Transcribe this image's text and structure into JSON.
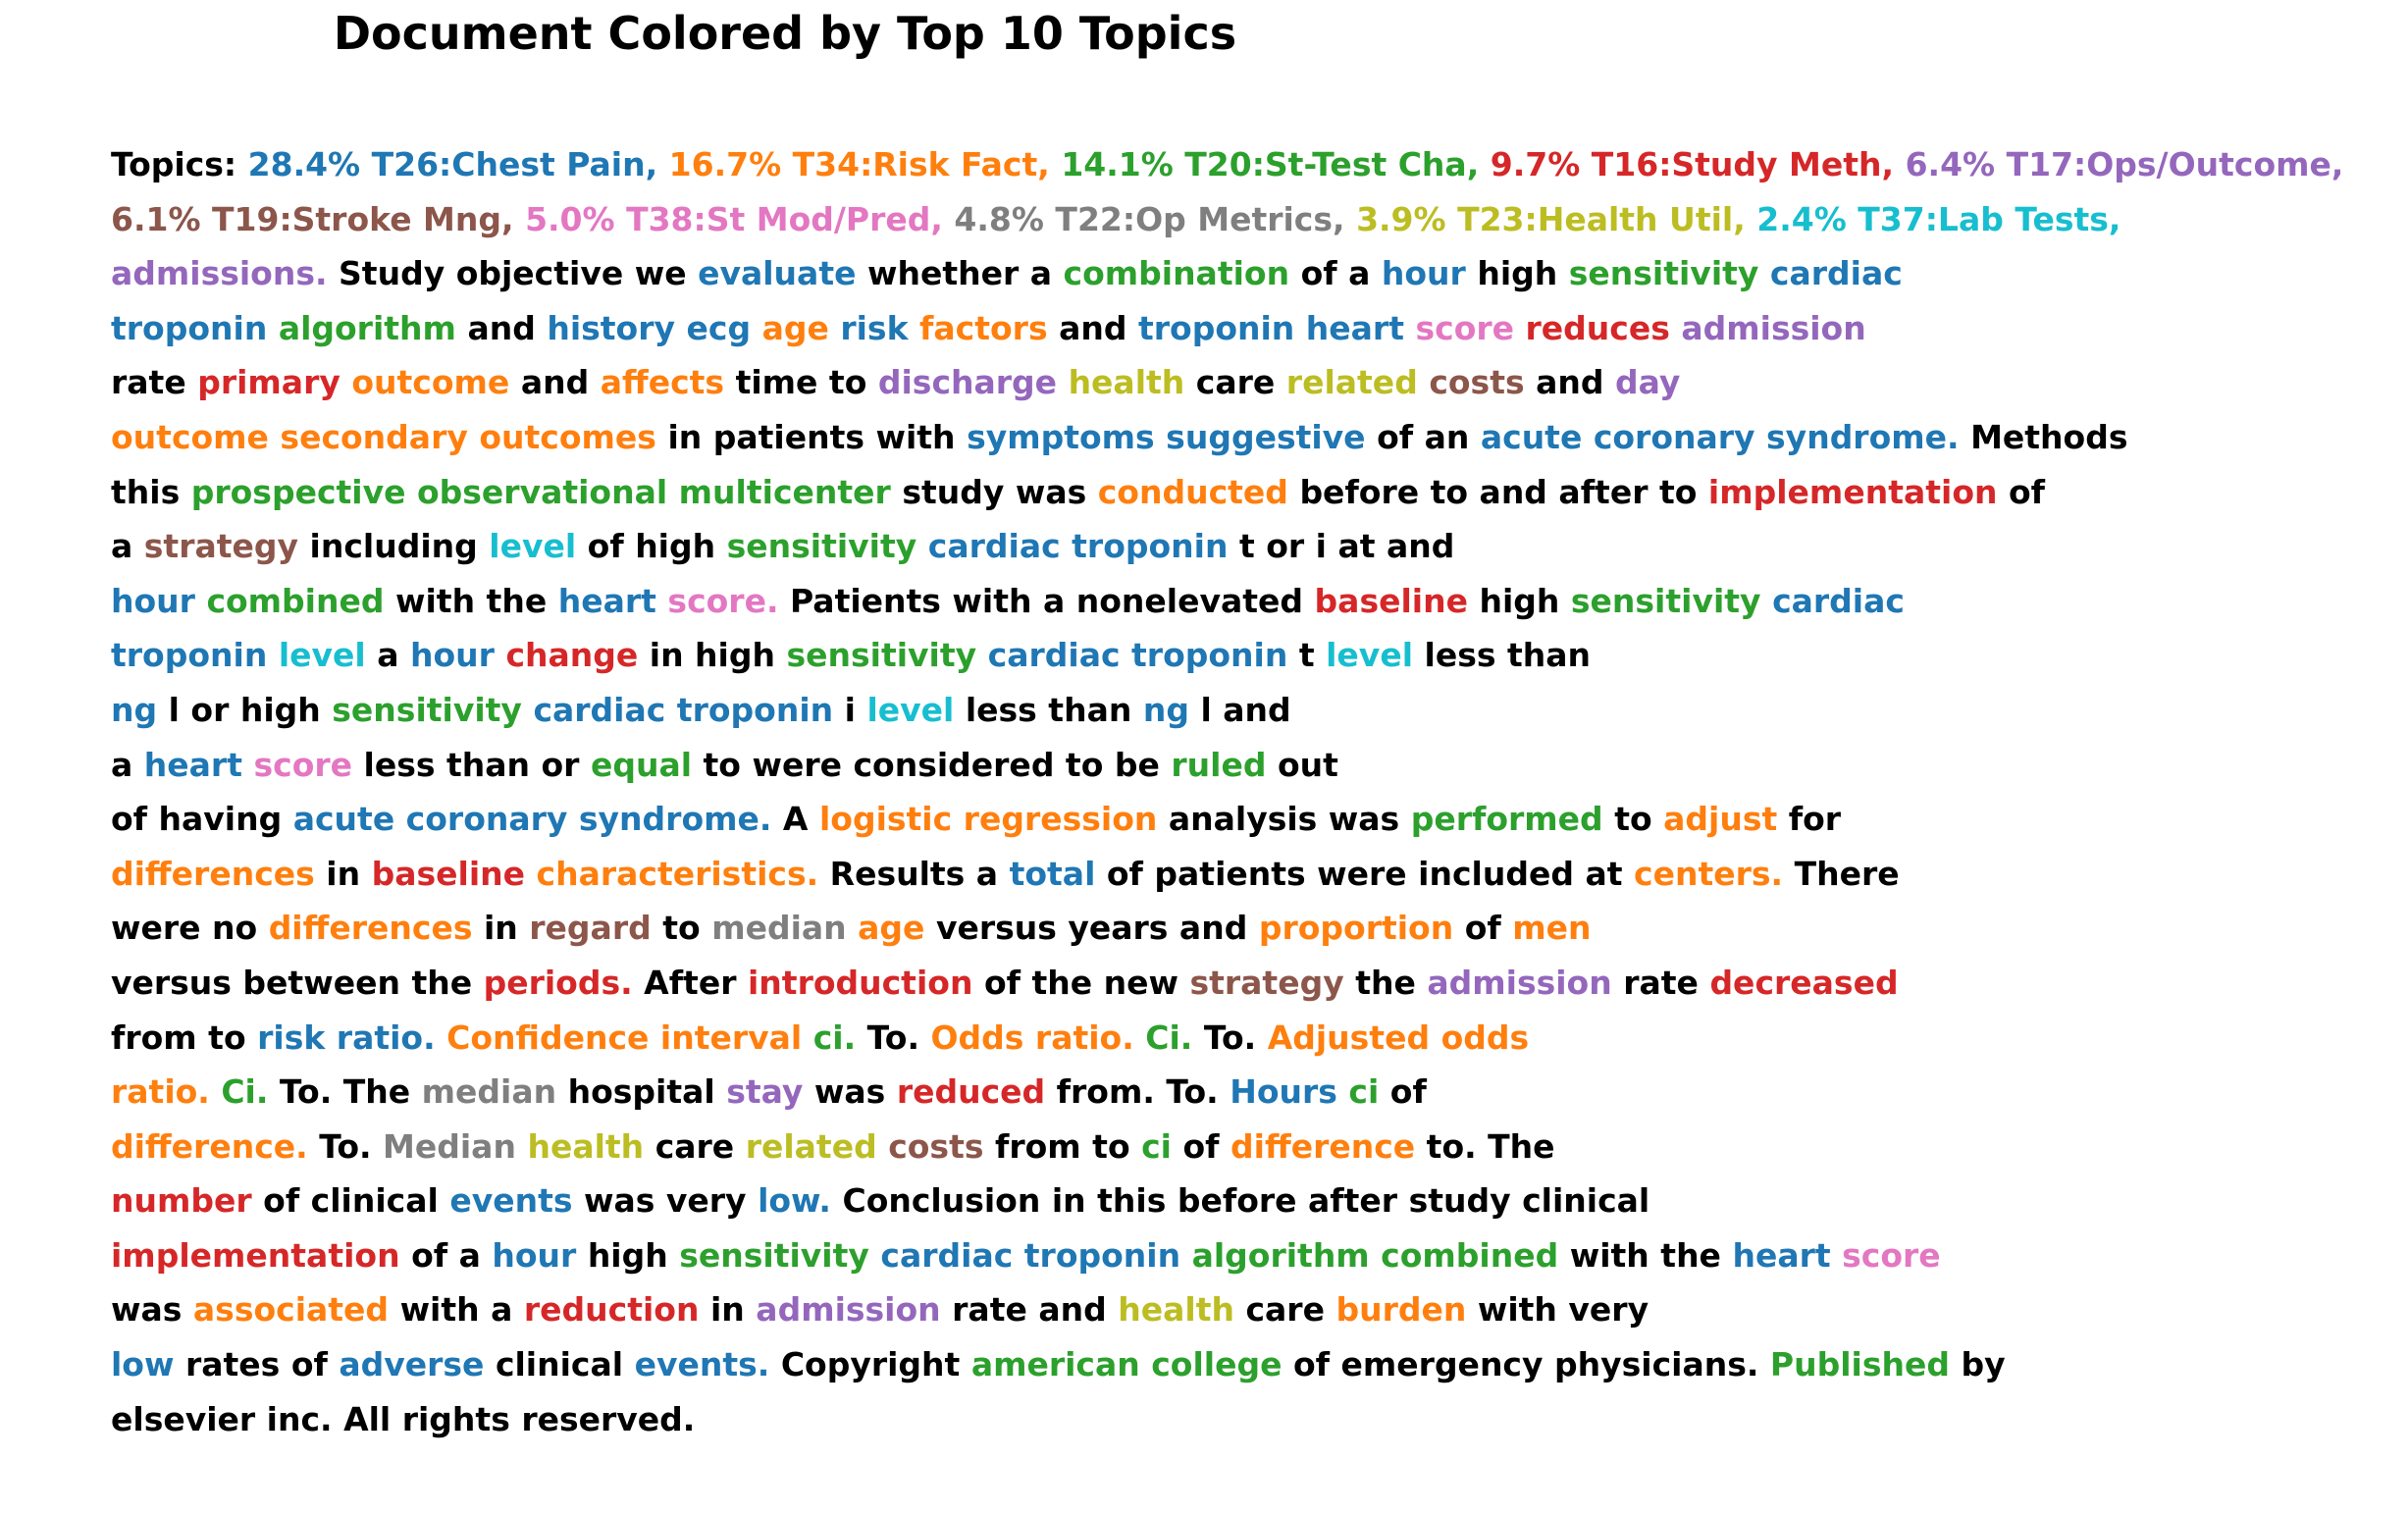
{
  "title": "Document Colored by Top 10 Topics",
  "palette": {
    "plain": "#000000",
    "T26": "#1f77b4",
    "T34": "#ff7f0e",
    "T20": "#2ca02c",
    "T16": "#d62728",
    "T17": "#9467bd",
    "T19": "#8c564b",
    "T38": "#e377c2",
    "T22": "#7f7f7f",
    "T23": "#bcbd22",
    "T37": "#17becf"
  },
  "legend": [
    {
      "topic": "T26",
      "text": "28.4% T26:Chest Pain,"
    },
    {
      "topic": "T34",
      "text": "16.7% T34:Risk Fact,"
    },
    {
      "topic": "T20",
      "text": "14.1% T20:St-Test Cha,"
    },
    {
      "topic": "T16",
      "text": "9.7% T16:Study Meth,"
    },
    {
      "topic": "T17",
      "text": "6.4% T17:Ops/Outcome,"
    },
    {
      "topic": "T19",
      "text": "6.1% T19:Stroke Mng,"
    },
    {
      "topic": "T38",
      "text": "5.0% T38:St Mod/Pred,"
    },
    {
      "topic": "T22",
      "text": "4.8% T22:Op Metrics,"
    },
    {
      "topic": "T23",
      "text": "3.9% T23:Health Util,"
    },
    {
      "topic": "T37",
      "text": "2.4% T37:Lab Tests,"
    }
  ],
  "lines": [
    [
      [
        "Topics:",
        "plain"
      ],
      [
        "28.4% T26:Chest Pain,",
        "T26"
      ],
      [
        "16.7% T34:Risk Fact,",
        "T34"
      ],
      [
        "14.1% T20:St-Test Cha,",
        "T20"
      ],
      [
        "9.7% T16:Study Meth,",
        "T16"
      ],
      [
        "6.4% T17:Ops/Outcome,",
        "T17"
      ]
    ],
    [
      [
        "6.1% T19:Stroke Mng,",
        "T19"
      ],
      [
        "5.0% T38:St Mod/Pred,",
        "T38"
      ],
      [
        "4.8% T22:Op Metrics,",
        "T22"
      ],
      [
        "3.9% T23:Health Util,",
        "T23"
      ],
      [
        "2.4% T37:Lab Tests,",
        "T37"
      ]
    ],
    [
      [
        "admissions.",
        "T17"
      ],
      [
        "Study objective we",
        "plain"
      ],
      [
        "evaluate",
        "T26"
      ],
      [
        "whether a",
        "plain"
      ],
      [
        "combination",
        "T20"
      ],
      [
        "of a",
        "plain"
      ],
      [
        "hour",
        "T26"
      ],
      [
        "high",
        "plain"
      ],
      [
        "sensitivity",
        "T20"
      ],
      [
        "cardiac",
        "T26"
      ]
    ],
    [
      [
        "troponin",
        "T26"
      ],
      [
        "algorithm",
        "T20"
      ],
      [
        "and",
        "plain"
      ],
      [
        "history ecg",
        "T26"
      ],
      [
        "age",
        "T34"
      ],
      [
        "risk",
        "T26"
      ],
      [
        "factors",
        "T34"
      ],
      [
        "and",
        "plain"
      ],
      [
        "troponin heart",
        "T26"
      ],
      [
        "score",
        "T38"
      ],
      [
        "reduces",
        "T16"
      ],
      [
        "admission",
        "T17"
      ]
    ],
    [
      [
        "rate",
        "plain"
      ],
      [
        "primary",
        "T16"
      ],
      [
        "outcome",
        "T34"
      ],
      [
        "and",
        "plain"
      ],
      [
        "affects",
        "T34"
      ],
      [
        "time to",
        "plain"
      ],
      [
        "discharge",
        "T17"
      ],
      [
        "health",
        "T23"
      ],
      [
        "care",
        "plain"
      ],
      [
        "related",
        "T23"
      ],
      [
        "costs",
        "T19"
      ],
      [
        "and",
        "plain"
      ],
      [
        "day",
        "T17"
      ]
    ],
    [
      [
        "outcome secondary outcomes",
        "T34"
      ],
      [
        "in patients with",
        "plain"
      ],
      [
        "symptoms suggestive",
        "T26"
      ],
      [
        "of an",
        "plain"
      ],
      [
        "acute coronary syndrome.",
        "T26"
      ],
      [
        "Methods",
        "plain"
      ]
    ],
    [
      [
        "this",
        "plain"
      ],
      [
        "prospective observational multicenter",
        "T20"
      ],
      [
        "study was",
        "plain"
      ],
      [
        "conducted",
        "T34"
      ],
      [
        "before to and after to",
        "plain"
      ],
      [
        "implementation",
        "T16"
      ],
      [
        "of",
        "plain"
      ]
    ],
    [
      [
        "a",
        "plain"
      ],
      [
        "strategy",
        "T19"
      ],
      [
        "including",
        "plain"
      ],
      [
        "level",
        "T37"
      ],
      [
        "of high",
        "plain"
      ],
      [
        "sensitivity",
        "T20"
      ],
      [
        "cardiac troponin",
        "T26"
      ],
      [
        "t or i at and",
        "plain"
      ]
    ],
    [
      [
        "hour",
        "T26"
      ],
      [
        "combined",
        "T20"
      ],
      [
        "with the",
        "plain"
      ],
      [
        "heart",
        "T26"
      ],
      [
        "score.",
        "T38"
      ],
      [
        "Patients with a nonelevated",
        "plain"
      ],
      [
        "baseline",
        "T16"
      ],
      [
        "high",
        "plain"
      ],
      [
        "sensitivity",
        "T20"
      ],
      [
        "cardiac",
        "T26"
      ]
    ],
    [
      [
        "troponin",
        "T26"
      ],
      [
        "level",
        "T37"
      ],
      [
        "a",
        "plain"
      ],
      [
        "hour",
        "T26"
      ],
      [
        "change",
        "T16"
      ],
      [
        "in high",
        "plain"
      ],
      [
        "sensitivity",
        "T20"
      ],
      [
        "cardiac troponin",
        "T26"
      ],
      [
        "t",
        "plain"
      ],
      [
        "level",
        "T37"
      ],
      [
        "less than",
        "plain"
      ]
    ],
    [
      [
        "ng",
        "T26"
      ],
      [
        "l or high",
        "plain"
      ],
      [
        "sensitivity",
        "T20"
      ],
      [
        "cardiac troponin",
        "T26"
      ],
      [
        "i",
        "plain"
      ],
      [
        "level",
        "T37"
      ],
      [
        "less than",
        "plain"
      ],
      [
        "ng",
        "T26"
      ],
      [
        "l and",
        "plain"
      ]
    ],
    [
      [
        "a",
        "plain"
      ],
      [
        "heart",
        "T26"
      ],
      [
        "score",
        "T38"
      ],
      [
        "less than or",
        "plain"
      ],
      [
        "equal",
        "T20"
      ],
      [
        "to were considered to be",
        "plain"
      ],
      [
        "ruled",
        "T20"
      ],
      [
        "out",
        "plain"
      ]
    ],
    [
      [
        "of having",
        "plain"
      ],
      [
        "acute coronary syndrome.",
        "T26"
      ],
      [
        "A",
        "plain"
      ],
      [
        "logistic regression",
        "T34"
      ],
      [
        "analysis was",
        "plain"
      ],
      [
        "performed",
        "T20"
      ],
      [
        "to",
        "plain"
      ],
      [
        "adjust",
        "T34"
      ],
      [
        "for",
        "plain"
      ]
    ],
    [
      [
        "differences",
        "T34"
      ],
      [
        "in",
        "plain"
      ],
      [
        "baseline",
        "T16"
      ],
      [
        "characteristics.",
        "T34"
      ],
      [
        "Results a",
        "plain"
      ],
      [
        "total",
        "T26"
      ],
      [
        "of patients were included at",
        "plain"
      ],
      [
        "centers.",
        "T34"
      ],
      [
        "There",
        "plain"
      ]
    ],
    [
      [
        "were no",
        "plain"
      ],
      [
        "differences",
        "T34"
      ],
      [
        "in",
        "plain"
      ],
      [
        "regard",
        "T19"
      ],
      [
        "to",
        "plain"
      ],
      [
        "median",
        "T22"
      ],
      [
        "age",
        "T34"
      ],
      [
        "versus years and",
        "plain"
      ],
      [
        "proportion",
        "T34"
      ],
      [
        "of",
        "plain"
      ],
      [
        "men",
        "T34"
      ]
    ],
    [
      [
        "versus between the",
        "plain"
      ],
      [
        "periods.",
        "T16"
      ],
      [
        "After",
        "plain"
      ],
      [
        "introduction",
        "T16"
      ],
      [
        "of the new",
        "plain"
      ],
      [
        "strategy",
        "T19"
      ],
      [
        "the",
        "plain"
      ],
      [
        "admission",
        "T17"
      ],
      [
        "rate",
        "plain"
      ],
      [
        "decreased",
        "T16"
      ]
    ],
    [
      [
        "from to",
        "plain"
      ],
      [
        "risk ratio.",
        "T26"
      ],
      [
        "Confidence interval",
        "T34"
      ],
      [
        "ci.",
        "T20"
      ],
      [
        "To.",
        "plain"
      ],
      [
        "Odds ratio.",
        "T34"
      ],
      [
        "Ci.",
        "T20"
      ],
      [
        "To.",
        "plain"
      ],
      [
        "Adjusted odds",
        "T34"
      ]
    ],
    [
      [
        "ratio.",
        "T34"
      ],
      [
        "Ci.",
        "T20"
      ],
      [
        "To. The",
        "plain"
      ],
      [
        "median",
        "T22"
      ],
      [
        "hospital",
        "plain"
      ],
      [
        "stay",
        "T17"
      ],
      [
        "was",
        "plain"
      ],
      [
        "reduced",
        "T16"
      ],
      [
        "from. To.",
        "plain"
      ],
      [
        "Hours",
        "T26"
      ],
      [
        "ci",
        "T20"
      ],
      [
        "of",
        "plain"
      ]
    ],
    [
      [
        "difference.",
        "T34"
      ],
      [
        "To.",
        "plain"
      ],
      [
        "Median",
        "T22"
      ],
      [
        "health",
        "T23"
      ],
      [
        "care",
        "plain"
      ],
      [
        "related",
        "T23"
      ],
      [
        "costs",
        "T19"
      ],
      [
        "from to",
        "plain"
      ],
      [
        "ci",
        "T20"
      ],
      [
        "of",
        "plain"
      ],
      [
        "difference",
        "T34"
      ],
      [
        "to. The",
        "plain"
      ]
    ],
    [
      [
        "number",
        "T16"
      ],
      [
        "of clinical",
        "plain"
      ],
      [
        "events",
        "T26"
      ],
      [
        "was very",
        "plain"
      ],
      [
        "low.",
        "T26"
      ],
      [
        "Conclusion in this before after study clinical",
        "plain"
      ]
    ],
    [
      [
        "implementation",
        "T16"
      ],
      [
        "of a",
        "plain"
      ],
      [
        "hour",
        "T26"
      ],
      [
        "high",
        "plain"
      ],
      [
        "sensitivity",
        "T20"
      ],
      [
        "cardiac troponin",
        "T26"
      ],
      [
        "algorithm combined",
        "T20"
      ],
      [
        "with the",
        "plain"
      ],
      [
        "heart",
        "T26"
      ],
      [
        "score",
        "T38"
      ]
    ],
    [
      [
        "was",
        "plain"
      ],
      [
        "associated",
        "T34"
      ],
      [
        "with a",
        "plain"
      ],
      [
        "reduction",
        "T16"
      ],
      [
        "in",
        "plain"
      ],
      [
        "admission",
        "T17"
      ],
      [
        "rate and",
        "plain"
      ],
      [
        "health",
        "T23"
      ],
      [
        "care",
        "plain"
      ],
      [
        "burden",
        "T34"
      ],
      [
        "with very",
        "plain"
      ]
    ],
    [
      [
        "low",
        "T26"
      ],
      [
        "rates of",
        "plain"
      ],
      [
        "adverse",
        "T26"
      ],
      [
        "clinical",
        "plain"
      ],
      [
        "events.",
        "T26"
      ],
      [
        "Copyright",
        "plain"
      ],
      [
        "american college",
        "T20"
      ],
      [
        "of emergency physicians.",
        "plain"
      ],
      [
        "Published",
        "T20"
      ],
      [
        "by",
        "plain"
      ]
    ],
    [
      [
        "elsevier inc. All rights reserved.",
        "plain"
      ]
    ]
  ]
}
